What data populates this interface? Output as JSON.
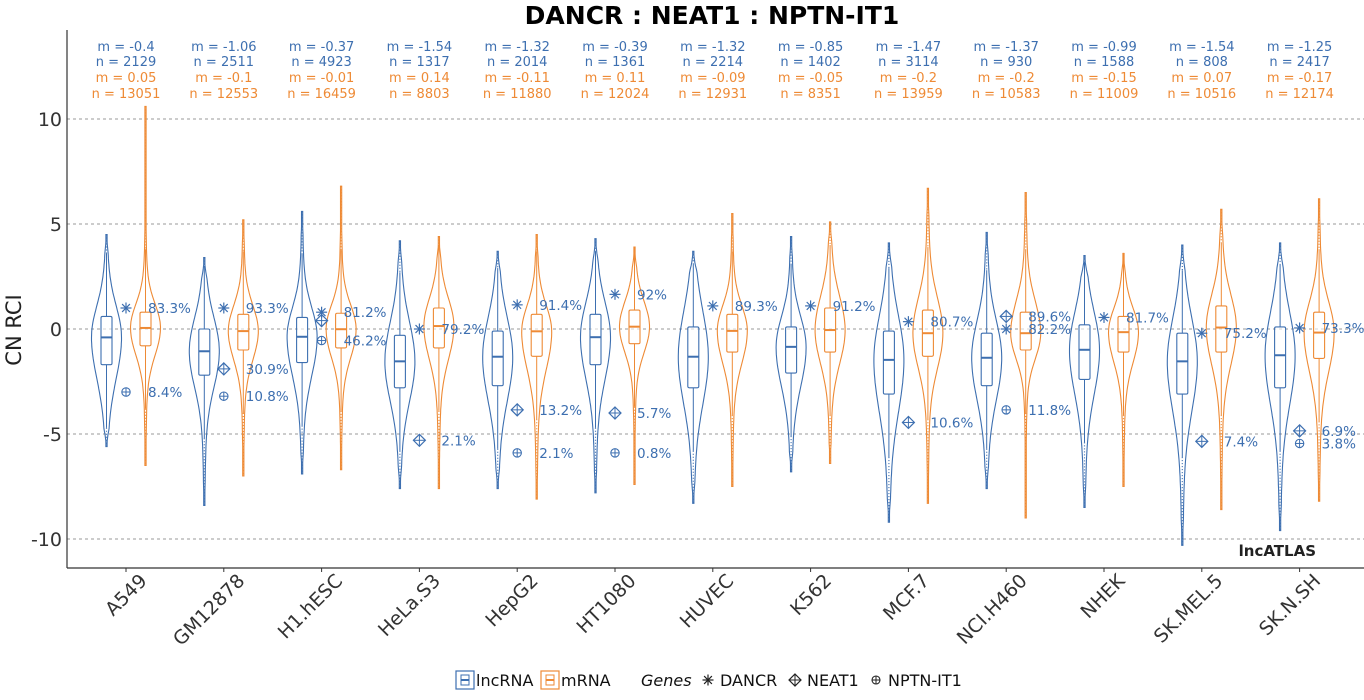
{
  "chart_data": {
    "type": "violin-box",
    "title": "DANCR : NEAT1 : NPTN-IT1",
    "ylabel": "CN RCI",
    "xlabel": "",
    "ylim": [
      -11.5,
      14.0
    ],
    "yticks": [
      10,
      5,
      0,
      -5,
      -10
    ],
    "ytick_labels": [
      "10",
      "5",
      "0",
      "-5",
      "-10"
    ],
    "grid": "horizontal dashed at y ticks",
    "watermark": "lncATLAS",
    "colors": {
      "lncRNA": "#3d6fb0",
      "mRNA": "#ee8a35"
    },
    "categories": [
      "A549",
      "GM12878",
      "H1.hESC",
      "HeLa.S3",
      "HepG2",
      "HT1080",
      "HUVEC",
      "K562",
      "MCF.7",
      "NCI.H460",
      "NHEK",
      "SK.MEL.5",
      "SK.N.SH"
    ],
    "series": [
      {
        "name": "lncRNA",
        "stats_text": {
          "m": [
            "m = -0.4",
            "m = -1.06",
            "m = -0.37",
            "m = -1.54",
            "m = -1.32",
            "m = -0.39",
            "m = -1.32",
            "m = -0.85",
            "m = -1.47",
            "m = -1.37",
            "m = -0.99",
            "m = -1.54",
            "m = -1.25"
          ],
          "n": [
            "n = 2129",
            "n = 2511",
            "n = 4923",
            "n = 1317",
            "n = 2014",
            "n = 1361",
            "n = 2214",
            "n = 1402",
            "n = 3114",
            "n = 930",
            "n = 1588",
            "n = 808",
            "n = 2417"
          ]
        },
        "median": [
          -0.4,
          -1.06,
          -0.37,
          -1.54,
          -1.32,
          -0.39,
          -1.32,
          -0.85,
          -1.47,
          -1.37,
          -0.99,
          -1.54,
          -1.25
        ],
        "q1": [
          -1.7,
          -2.2,
          -1.6,
          -2.8,
          -2.7,
          -1.7,
          -2.8,
          -2.1,
          -3.1,
          -2.7,
          -2.4,
          -3.1,
          -2.8
        ],
        "q3": [
          0.6,
          0.0,
          0.55,
          -0.3,
          -0.1,
          0.7,
          0.1,
          0.1,
          -0.1,
          -0.2,
          0.2,
          -0.2,
          0.1
        ],
        "min": [
          -5.6,
          -8.4,
          -6.9,
          -7.6,
          -7.6,
          -7.8,
          -8.3,
          -6.8,
          -9.2,
          -7.6,
          -8.5,
          -10.3,
          -9.6
        ],
        "max": [
          4.5,
          3.4,
          5.6,
          4.2,
          3.7,
          4.3,
          3.7,
          4.4,
          4.1,
          4.6,
          3.5,
          4.0,
          4.1
        ]
      },
      {
        "name": "mRNA",
        "stats_text": {
          "m": [
            "m = 0.05",
            "m = -0.1",
            "m = -0.01",
            "m = 0.14",
            "m = -0.11",
            "m = 0.11",
            "m = -0.09",
            "m = -0.05",
            "m = -0.2",
            "m = -0.2",
            "m = -0.15",
            "m = 0.07",
            "m = -0.17"
          ],
          "n": [
            "n = 13051",
            "n = 12553",
            "n = 16459",
            "n = 8803",
            "n = 11880",
            "n = 12024",
            "n = 12931",
            "n = 8351",
            "n = 13959",
            "n = 10583",
            "n = 11009",
            "n = 10516",
            "n = 12174"
          ]
        },
        "median": [
          0.05,
          -0.1,
          -0.01,
          0.14,
          -0.11,
          0.11,
          -0.09,
          -0.05,
          -0.2,
          -0.2,
          -0.15,
          0.07,
          -0.17
        ],
        "q1": [
          -0.8,
          -1.0,
          -0.9,
          -0.9,
          -1.3,
          -0.7,
          -1.1,
          -1.1,
          -1.3,
          -1.0,
          -1.1,
          -1.1,
          -1.4
        ],
        "q3": [
          0.8,
          0.7,
          0.75,
          1.0,
          0.7,
          0.9,
          0.7,
          1.0,
          0.9,
          0.8,
          0.6,
          1.1,
          0.8
        ],
        "min": [
          -6.5,
          -7.0,
          -6.7,
          -7.6,
          -8.1,
          -7.4,
          -7.5,
          -6.4,
          -8.3,
          -9.0,
          -7.5,
          -8.6,
          -8.2
        ],
        "max": [
          10.6,
          5.2,
          6.8,
          4.4,
          4.5,
          3.9,
          5.5,
          5.1,
          6.7,
          6.5,
          3.6,
          5.7,
          6.2
        ]
      }
    ],
    "genes": [
      {
        "name": "DANCR",
        "symbol": "✳",
        "values": [
          1.0,
          1.0,
          0.8,
          0.0,
          1.15,
          1.65,
          1.1,
          1.1,
          0.35,
          0.0,
          0.55,
          -0.2,
          0.05
        ],
        "labels": [
          "83.3%",
          "93.3%",
          "81.2%",
          "79.2%",
          "91.4%",
          "92%",
          "89.3%",
          "91.2%",
          "80.7%",
          "82.2%",
          "81.7%",
          "75.2%",
          "73.3%"
        ]
      },
      {
        "name": "NEAT1",
        "symbol": "⌖",
        "values": [
          null,
          -1.9,
          0.4,
          -5.3,
          -3.85,
          -4.0,
          null,
          null,
          -4.45,
          0.6,
          null,
          -5.35,
          -4.85
        ],
        "labels": [
          "",
          "30.9%",
          "",
          "2.1%",
          "13.2%",
          "5.7%",
          "",
          "",
          "10.6%",
          "89.6%",
          "",
          "7.4%",
          "6.9%"
        ]
      },
      {
        "name": "NPTN-IT1",
        "symbol": "⊕",
        "values": [
          -3.0,
          -3.2,
          -0.55,
          null,
          -5.9,
          -5.9,
          null,
          null,
          null,
          -3.85,
          null,
          null,
          -5.45
        ],
        "labels": [
          "8.4%",
          "10.8%",
          "46.2%",
          "",
          "2.1%",
          "0.8%",
          "",
          "",
          "",
          "11.8%",
          "",
          "",
          "3.8%"
        ]
      }
    ],
    "legend": {
      "position": "bottom",
      "items": [
        "lncRNA",
        "mRNA"
      ],
      "genes_title": "Genes",
      "genes": [
        "DANCR",
        "NEAT1",
        "NPTN-IT1"
      ]
    }
  }
}
